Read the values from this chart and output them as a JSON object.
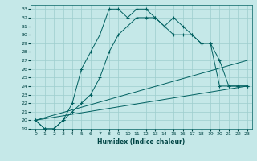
{
  "xlabel": "Humidex (Indice chaleur)",
  "ylabel": "",
  "background_color": "#c5e8e8",
  "grid_color": "#9ecece",
  "line_color": "#006060",
  "xlim": [
    -0.5,
    23.5
  ],
  "ylim": [
    19,
    33.5
  ],
  "yticks": [
    19,
    20,
    21,
    22,
    23,
    24,
    25,
    26,
    27,
    28,
    29,
    30,
    31,
    32,
    33
  ],
  "xticks": [
    0,
    1,
    2,
    3,
    4,
    5,
    6,
    7,
    8,
    9,
    10,
    11,
    12,
    13,
    14,
    15,
    16,
    17,
    18,
    19,
    20,
    21,
    22,
    23
  ],
  "lines": [
    {
      "x": [
        0,
        1,
        2,
        3,
        4,
        5,
        6,
        7,
        8,
        9,
        10,
        11,
        12,
        13,
        14,
        15,
        16,
        17,
        18,
        19,
        20,
        21,
        22,
        23
      ],
      "y": [
        20,
        19,
        19,
        20,
        22,
        26,
        28,
        30,
        33,
        33,
        32,
        33,
        33,
        32,
        31,
        32,
        31,
        30,
        29,
        29,
        24,
        24,
        24,
        24
      ],
      "style": "-",
      "marker": "+"
    },
    {
      "x": [
        0,
        1,
        2,
        3,
        4,
        5,
        6,
        7,
        8,
        9,
        10,
        11,
        12,
        13,
        14,
        15,
        16,
        17,
        18,
        19,
        20,
        21,
        22,
        23
      ],
      "y": [
        20,
        19,
        19,
        20,
        21,
        22,
        23,
        25,
        28,
        30,
        31,
        32,
        32,
        32,
        31,
        30,
        30,
        30,
        29,
        29,
        27,
        24,
        24,
        24
      ],
      "style": "-",
      "marker": "+"
    },
    {
      "x": [
        0,
        23
      ],
      "y": [
        20,
        27
      ],
      "style": "-",
      "marker": null
    },
    {
      "x": [
        0,
        23
      ],
      "y": [
        20,
        24
      ],
      "style": "-",
      "marker": null
    }
  ]
}
